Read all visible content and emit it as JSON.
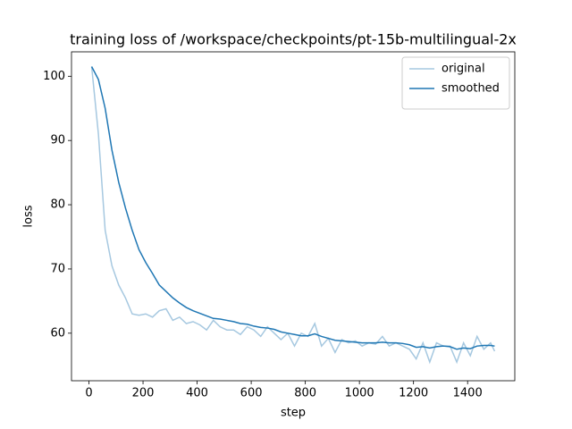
{
  "chart_data": {
    "type": "line",
    "title": "training loss of /workspace/checkpoints/pt-15b-multilingual-2x",
    "x_label": "step",
    "y_label": "loss",
    "x": [
      10,
      35,
      60,
      85,
      110,
      135,
      160,
      185,
      210,
      235,
      260,
      285,
      310,
      335,
      360,
      385,
      410,
      435,
      460,
      485,
      510,
      535,
      560,
      585,
      610,
      635,
      660,
      685,
      710,
      735,
      760,
      785,
      810,
      835,
      860,
      885,
      910,
      935,
      960,
      985,
      1010,
      1035,
      1060,
      1085,
      1110,
      1135,
      1160,
      1185,
      1210,
      1235,
      1260,
      1285,
      1310,
      1335,
      1360,
      1385,
      1410,
      1435,
      1460,
      1485,
      1500
    ],
    "series": [
      {
        "name": "original",
        "color": "#a6c8e0",
        "values": [
          101.5,
          91,
          76,
          70.5,
          67.5,
          65.5,
          63,
          62.8,
          63,
          62.5,
          63.5,
          63.8,
          62,
          62.5,
          61.5,
          61.8,
          61.3,
          60.5,
          62,
          61,
          60.5,
          60.5,
          59.8,
          61,
          60.5,
          59.5,
          61,
          60,
          59,
          60,
          58,
          60,
          59.5,
          61.5,
          58,
          59.2,
          57,
          59,
          58.5,
          58.8,
          58,
          58.5,
          58.3,
          59.5,
          58,
          58.5,
          58,
          57.5,
          56,
          58.5,
          55.5,
          58.5,
          58,
          58,
          55.5,
          58.5,
          56.5,
          59.5,
          57.5,
          58.5,
          57.2
        ]
      },
      {
        "name": "smoothed",
        "color": "#1f77b4",
        "values": [
          101.5,
          99.5,
          95,
          88.5,
          83.5,
          79.5,
          76,
          73,
          71,
          69.3,
          67.5,
          66.5,
          65.5,
          64.7,
          64,
          63.5,
          63.1,
          62.7,
          62.3,
          62.2,
          62,
          61.8,
          61.5,
          61.4,
          61.1,
          60.9,
          60.8,
          60.6,
          60.2,
          60,
          59.8,
          59.6,
          59.6,
          59.9,
          59.5,
          59.2,
          58.9,
          58.8,
          58.7,
          58.6,
          58.5,
          58.5,
          58.5,
          58.6,
          58.5,
          58.5,
          58.4,
          58.2,
          57.8,
          57.9,
          57.7,
          57.9,
          58,
          57.9,
          57.5,
          57.7,
          57.6,
          58,
          58.1,
          58.1,
          58
        ]
      }
    ],
    "xlim": [
      -64.5,
      1574.5
    ],
    "ylim": [
      52.6,
      103.8
    ],
    "xticks": [
      0,
      200,
      400,
      600,
      800,
      1000,
      1200,
      1400
    ],
    "yticks": [
      60,
      70,
      80,
      90,
      100
    ],
    "legend": "upper right",
    "grid": false
  }
}
